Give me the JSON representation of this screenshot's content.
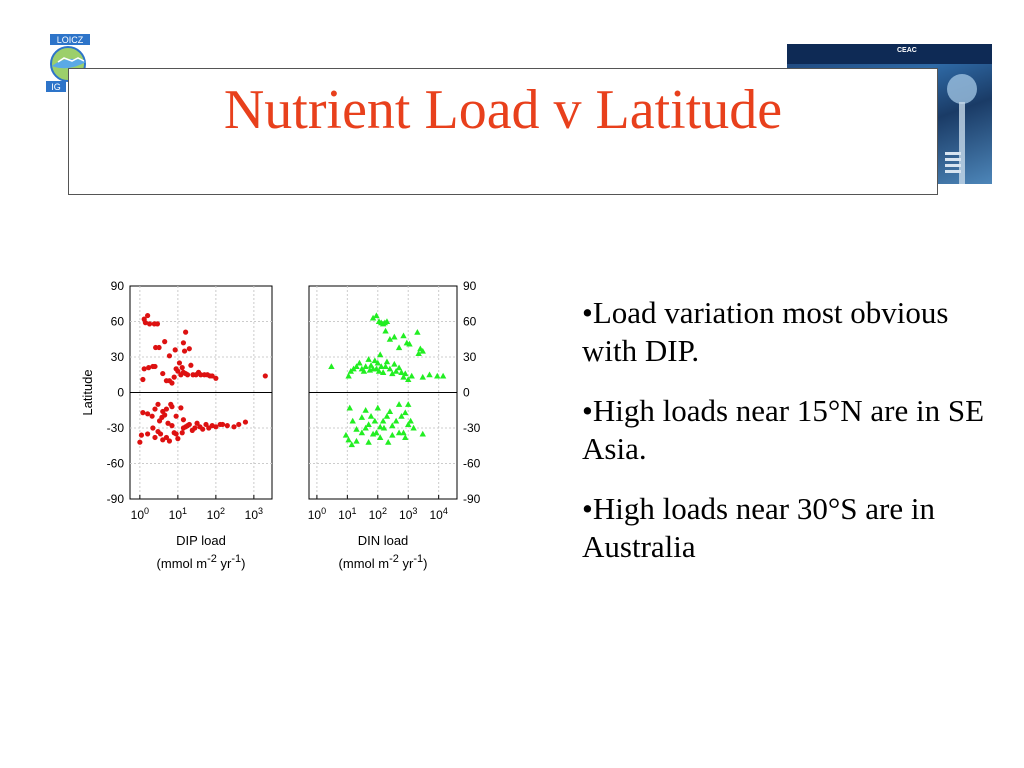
{
  "slide": {
    "title": "Nutrient Load v Latitude",
    "bullets": [
      "•Load variation most obvious with DIP.",
      "•High loads near 15°N are in SE Asia.",
      "•High loads near 30°S are in Australia"
    ],
    "logo_text_top": "LOICZ",
    "logo_text_bottom": "IG",
    "photo_text": "CEAC",
    "colors": {
      "title": "#e8401c",
      "dip": "#dd1111",
      "din": "#22ee22"
    }
  },
  "chart_data": [
    {
      "type": "scatter",
      "ylabel": "Latitude",
      "xlabel": "DIP load",
      "xlabel_units": [
        "(mmol m",
        "-2",
        " yr",
        "-1",
        ")"
      ],
      "x_scale": "log",
      "xlim": [
        0.55,
        3000
      ],
      "ylim": [
        -90,
        90
      ],
      "x_ticks": [
        1,
        10,
        100,
        1000
      ],
      "x_tick_labels": [
        [
          "10",
          "0"
        ],
        [
          "10",
          "1"
        ],
        [
          "10",
          "2"
        ],
        [
          "10",
          "3"
        ]
      ],
      "y_ticks": [
        90,
        60,
        30,
        0,
        -30,
        -60,
        -90
      ],
      "marker": "circle",
      "color": "#dd1111",
      "points": [
        [
          1.3,
          62
        ],
        [
          1.6,
          65
        ],
        [
          1.4,
          59
        ],
        [
          1.8,
          58
        ],
        [
          2.4,
          58
        ],
        [
          2.9,
          58
        ],
        [
          2.6,
          38
        ],
        [
          3.2,
          38
        ],
        [
          4.5,
          43
        ],
        [
          6,
          31
        ],
        [
          8.5,
          36
        ],
        [
          15,
          35
        ],
        [
          14,
          42
        ],
        [
          16,
          51
        ],
        [
          20,
          37
        ],
        [
          1.3,
          20
        ],
        [
          1.2,
          11
        ],
        [
          1.7,
          21
        ],
        [
          2.2,
          22
        ],
        [
          2.5,
          22
        ],
        [
          4,
          16
        ],
        [
          5,
          10
        ],
        [
          6,
          10
        ],
        [
          7,
          8
        ],
        [
          8,
          13
        ],
        [
          9,
          20
        ],
        [
          10,
          18
        ],
        [
          11,
          25
        ],
        [
          12,
          15
        ],
        [
          13,
          21
        ],
        [
          14,
          17
        ],
        [
          16,
          16
        ],
        [
          18,
          15
        ],
        [
          22,
          23
        ],
        [
          25,
          15
        ],
        [
          30,
          15
        ],
        [
          35,
          17
        ],
        [
          40,
          15
        ],
        [
          50,
          15
        ],
        [
          60,
          15
        ],
        [
          70,
          14
        ],
        [
          80,
          14
        ],
        [
          100,
          12
        ],
        [
          1.2,
          -17
        ],
        [
          1.6,
          -18
        ],
        [
          2.1,
          -20
        ],
        [
          2.5,
          -14
        ],
        [
          3,
          -10
        ],
        [
          3.3,
          -24
        ],
        [
          3.8,
          -21
        ],
        [
          4,
          -16
        ],
        [
          4.5,
          -19
        ],
        [
          5,
          -14
        ],
        [
          5.5,
          -26
        ],
        [
          6.5,
          -10
        ],
        [
          7,
          -12
        ],
        [
          9,
          -20
        ],
        [
          12,
          -13
        ],
        [
          14,
          -23
        ],
        [
          1,
          -42
        ],
        [
          1.1,
          -36
        ],
        [
          1.6,
          -35
        ],
        [
          2.2,
          -30
        ],
        [
          2.5,
          -38
        ],
        [
          3,
          -33
        ],
        [
          3.5,
          -35
        ],
        [
          4,
          -40
        ],
        [
          5,
          -38
        ],
        [
          6,
          -41
        ],
        [
          7,
          -28
        ],
        [
          8,
          -34
        ],
        [
          9,
          -35
        ],
        [
          10,
          -39
        ],
        [
          13,
          -34
        ],
        [
          14,
          -30
        ],
        [
          16,
          -29
        ],
        [
          18,
          -28
        ],
        [
          20,
          -27
        ],
        [
          24,
          -32
        ],
        [
          28,
          -30
        ],
        [
          32,
          -26
        ],
        [
          38,
          -29
        ],
        [
          45,
          -31
        ],
        [
          55,
          -27
        ],
        [
          65,
          -30
        ],
        [
          80,
          -28
        ],
        [
          100,
          -29
        ],
        [
          130,
          -27
        ],
        [
          150,
          -27
        ],
        [
          200,
          -28
        ],
        [
          300,
          -29
        ],
        [
          400,
          -27
        ],
        [
          600,
          -25
        ],
        [
          2000,
          14
        ]
      ]
    },
    {
      "type": "scatter",
      "xlabel": "DIN load",
      "xlabel_units": [
        "(mmol m",
        "-2",
        " yr",
        "-1",
        ")"
      ],
      "x_scale": "log",
      "xlim": [
        0.55,
        40000
      ],
      "ylim": [
        -90,
        90
      ],
      "x_ticks": [
        1,
        10,
        100,
        1000,
        10000
      ],
      "x_tick_labels": [
        [
          "10",
          "0"
        ],
        [
          "10",
          "1"
        ],
        [
          "10",
          "2"
        ],
        [
          "10",
          "3"
        ],
        [
          "10",
          "4"
        ]
      ],
      "y_ticks": [
        90,
        60,
        30,
        0,
        -30,
        -60,
        -90
      ],
      "marker": "triangle",
      "color": "#22ee22",
      "points": [
        [
          70,
          63
        ],
        [
          90,
          65
        ],
        [
          110,
          60
        ],
        [
          130,
          59
        ],
        [
          150,
          58
        ],
        [
          170,
          59
        ],
        [
          200,
          60
        ],
        [
          180,
          52
        ],
        [
          250,
          45
        ],
        [
          350,
          47
        ],
        [
          500,
          38
        ],
        [
          700,
          48
        ],
        [
          900,
          42
        ],
        [
          1100,
          41
        ],
        [
          2000,
          51
        ],
        [
          2200,
          33
        ],
        [
          2500,
          37
        ],
        [
          3000,
          35
        ],
        [
          3,
          22
        ],
        [
          11,
          14
        ],
        [
          13,
          18
        ],
        [
          16,
          20
        ],
        [
          20,
          22
        ],
        [
          25,
          25
        ],
        [
          30,
          20
        ],
        [
          35,
          18
        ],
        [
          40,
          22
        ],
        [
          50,
          28
        ],
        [
          55,
          19
        ],
        [
          60,
          23
        ],
        [
          70,
          20
        ],
        [
          80,
          27
        ],
        [
          90,
          20
        ],
        [
          100,
          25
        ],
        [
          110,
          18
        ],
        [
          120,
          32
        ],
        [
          130,
          22
        ],
        [
          150,
          17
        ],
        [
          180,
          22
        ],
        [
          200,
          26
        ],
        [
          250,
          20
        ],
        [
          300,
          16
        ],
        [
          350,
          24
        ],
        [
          400,
          18
        ],
        [
          500,
          21
        ],
        [
          600,
          17
        ],
        [
          700,
          13
        ],
        [
          800,
          16
        ],
        [
          1000,
          11
        ],
        [
          1300,
          14
        ],
        [
          3000,
          13
        ],
        [
          5000,
          15
        ],
        [
          9000,
          14
        ],
        [
          14000,
          14
        ],
        [
          12,
          -13
        ],
        [
          15,
          -24
        ],
        [
          20,
          -31
        ],
        [
          30,
          -21
        ],
        [
          40,
          -15
        ],
        [
          50,
          -27
        ],
        [
          60,
          -20
        ],
        [
          80,
          -24
        ],
        [
          100,
          -13
        ],
        [
          120,
          -29
        ],
        [
          150,
          -24
        ],
        [
          200,
          -20
        ],
        [
          250,
          -16
        ],
        [
          300,
          -28
        ],
        [
          400,
          -24
        ],
        [
          500,
          -10
        ],
        [
          600,
          -20
        ],
        [
          700,
          -34
        ],
        [
          800,
          -17
        ],
        [
          1000,
          -10
        ],
        [
          1200,
          -24
        ],
        [
          9,
          -36
        ],
        [
          11,
          -40
        ],
        [
          14,
          -44
        ],
        [
          20,
          -41
        ],
        [
          30,
          -34
        ],
        [
          40,
          -30
        ],
        [
          50,
          -42
        ],
        [
          70,
          -35
        ],
        [
          90,
          -34
        ],
        [
          120,
          -38
        ],
        [
          160,
          -30
        ],
        [
          220,
          -42
        ],
        [
          300,
          -36
        ],
        [
          500,
          -34
        ],
        [
          800,
          -38
        ],
        [
          1000,
          -27
        ],
        [
          1500,
          -30
        ],
        [
          3000,
          -35
        ]
      ]
    }
  ]
}
